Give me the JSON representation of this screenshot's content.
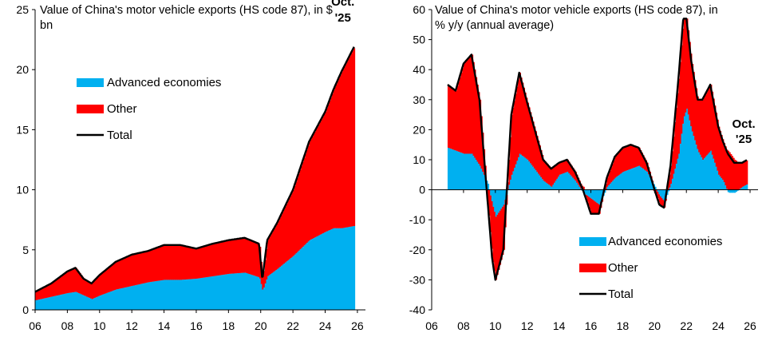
{
  "colors": {
    "advanced": "#00b0f0",
    "other": "#ff0000",
    "total": "#000000",
    "axis": "#000000"
  },
  "chart_data": [
    {
      "type": "area",
      "title_lines": [
        "Value of China's motor vehicle exports (HS code 87), in $",
        "bn"
      ],
      "xlabel": "",
      "ylabel": "",
      "xlim": [
        2006,
        2026.5
      ],
      "ylim": [
        0,
        25
      ],
      "x_ticks": [
        2006,
        2008,
        2010,
        2012,
        2014,
        2016,
        2018,
        2020,
        2022,
        2024,
        2026
      ],
      "x_tick_labels": [
        "06",
        "08",
        "10",
        "12",
        "14",
        "16",
        "18",
        "20",
        "22",
        "24",
        "26"
      ],
      "y_ticks": [
        0,
        5,
        10,
        15,
        20,
        25
      ],
      "y_tick_labels": [
        "0",
        "5",
        "10",
        "15",
        "20",
        "25"
      ],
      "legend": {
        "placement": "upper-left",
        "entries": [
          "Advanced economies",
          "Other",
          "Total"
        ]
      },
      "annotation": {
        "lines": [
          "Oct.",
          "'25"
        ],
        "x": 2025.1,
        "y": 22
      },
      "series": [
        {
          "name": "Advanced economies",
          "kind": "stacked-area",
          "x": [
            2006.0,
            2007.0,
            2008.0,
            2008.5,
            2009.0,
            2009.5,
            2010.0,
            2011.0,
            2012.0,
            2013.0,
            2014.0,
            2015.0,
            2016.0,
            2017.0,
            2018.0,
            2019.0,
            2019.9,
            2020.1,
            2020.4,
            2021.0,
            2022.0,
            2023.0,
            2024.0,
            2024.5,
            2025.0,
            2025.83
          ],
          "values": [
            0.8,
            1.1,
            1.4,
            1.5,
            1.2,
            0.9,
            1.2,
            1.7,
            2.0,
            2.3,
            2.5,
            2.5,
            2.6,
            2.8,
            3.0,
            3.1,
            2.7,
            1.6,
            2.8,
            3.4,
            4.5,
            5.8,
            6.5,
            6.8,
            6.8,
            7.0
          ]
        },
        {
          "name": "Other",
          "kind": "stacked-area",
          "x": [
            2006.0,
            2007.0,
            2008.0,
            2008.5,
            2009.0,
            2009.5,
            2010.0,
            2011.0,
            2012.0,
            2013.0,
            2014.0,
            2015.0,
            2016.0,
            2017.0,
            2018.0,
            2019.0,
            2019.9,
            2020.1,
            2020.4,
            2021.0,
            2022.0,
            2023.0,
            2024.0,
            2024.5,
            2025.0,
            2025.83
          ],
          "values": [
            0.7,
            1.1,
            1.8,
            2.0,
            1.4,
            1.3,
            1.7,
            2.3,
            2.6,
            2.6,
            2.9,
            2.9,
            2.5,
            2.7,
            2.8,
            2.9,
            2.8,
            0.9,
            3.0,
            3.8,
            5.5,
            8.2,
            10.0,
            11.5,
            13.0,
            15.0
          ]
        },
        {
          "name": "Total",
          "kind": "line",
          "x": [
            2006.0,
            2007.0,
            2008.0,
            2008.5,
            2009.0,
            2009.5,
            2010.0,
            2011.0,
            2012.0,
            2013.0,
            2014.0,
            2015.0,
            2016.0,
            2017.0,
            2018.0,
            2019.0,
            2019.9,
            2020.1,
            2020.4,
            2021.0,
            2022.0,
            2023.0,
            2024.0,
            2024.5,
            2025.0,
            2025.83
          ],
          "values": [
            1.5,
            2.2,
            3.2,
            3.5,
            2.6,
            2.2,
            2.9,
            4.0,
            4.6,
            4.9,
            5.4,
            5.4,
            5.1,
            5.5,
            5.8,
            6.0,
            5.5,
            2.5,
            5.8,
            7.2,
            10.0,
            14.0,
            16.5,
            18.3,
            19.8,
            22.0
          ]
        }
      ]
    },
    {
      "type": "area",
      "title_lines": [
        "Value of China's motor vehicle exports (HS code 87), in",
        "% y/y (annual average)"
      ],
      "xlabel": "",
      "ylabel": "",
      "xlim": [
        2006,
        2026.5
      ],
      "ylim": [
        -40,
        60
      ],
      "x_ticks": [
        2006,
        2008,
        2010,
        2012,
        2014,
        2016,
        2018,
        2020,
        2022,
        2024,
        2026
      ],
      "x_tick_labels": [
        "06",
        "08",
        "10",
        "12",
        "14",
        "16",
        "18",
        "20",
        "22",
        "24",
        "26"
      ],
      "y_ticks": [
        -40,
        -30,
        -20,
        -10,
        0,
        10,
        20,
        30,
        40,
        50,
        60
      ],
      "y_tick_labels": [
        "-40",
        "-30",
        "-20",
        "-10",
        "0",
        "10",
        "20",
        "30",
        "40",
        "50",
        "60"
      ],
      "legend": {
        "placement": "lower-center",
        "entries": [
          "Advanced economies",
          "Other",
          "Total"
        ]
      },
      "annotation": {
        "lines": [
          "Oct.",
          "'25"
        ],
        "x": 2025.6,
        "y": 10
      },
      "series": [
        {
          "name": "Advanced economies",
          "kind": "stacked-area",
          "x": [
            2007.0,
            2007.5,
            2008.0,
            2008.5,
            2009.0,
            2009.5,
            2009.8,
            2010.0,
            2010.5,
            2011.0,
            2011.5,
            2012.0,
            2013.0,
            2013.5,
            2014.0,
            2014.5,
            2015.0,
            2015.5,
            2016.0,
            2016.5,
            2017.0,
            2017.5,
            2018.0,
            2018.5,
            2019.0,
            2019.5,
            2020.0,
            2020.3,
            2020.6,
            2021.0,
            2021.5,
            2021.8,
            2022.0,
            2022.3,
            2022.7,
            2023.0,
            2023.5,
            2024.0,
            2024.3,
            2024.6,
            2025.0,
            2025.5,
            2025.83
          ],
          "values": [
            14,
            13,
            12,
            12,
            8,
            2,
            -5,
            -9,
            -5,
            5,
            12,
            10,
            3,
            1,
            5,
            6,
            3,
            -1,
            -3,
            -5,
            1,
            4,
            6,
            7,
            8,
            6,
            1,
            -2,
            -4,
            2,
            12,
            24,
            27,
            20,
            13,
            10,
            13,
            5,
            3,
            -1,
            -1,
            1,
            2
          ]
        },
        {
          "name": "Other",
          "kind": "stacked-area",
          "x": [
            2007.0,
            2007.5,
            2008.0,
            2008.5,
            2009.0,
            2009.5,
            2009.8,
            2010.0,
            2010.5,
            2011.0,
            2011.5,
            2012.0,
            2013.0,
            2013.5,
            2014.0,
            2014.5,
            2015.0,
            2015.5,
            2016.0,
            2016.5,
            2017.0,
            2017.5,
            2018.0,
            2018.5,
            2019.0,
            2019.5,
            2020.0,
            2020.3,
            2020.6,
            2021.0,
            2021.5,
            2021.8,
            2022.0,
            2022.3,
            2022.7,
            2023.0,
            2023.5,
            2024.0,
            2024.3,
            2024.6,
            2025.0,
            2025.5,
            2025.83
          ],
          "values": [
            21,
            20,
            30,
            33,
            22,
            -5,
            -18,
            -21,
            -15,
            20,
            27,
            19,
            7,
            6,
            4,
            4,
            3,
            1,
            -5,
            -3,
            3,
            7,
            8,
            8,
            6,
            3,
            -1,
            -3,
            -2,
            6,
            25,
            33,
            30,
            23,
            17,
            20,
            22,
            16,
            13,
            13,
            10,
            8,
            8
          ]
        },
        {
          "name": "Total",
          "kind": "line",
          "x": [
            2007.0,
            2007.5,
            2008.0,
            2008.5,
            2009.0,
            2009.5,
            2009.8,
            2010.0,
            2010.5,
            2011.0,
            2011.5,
            2012.0,
            2013.0,
            2013.5,
            2014.0,
            2014.5,
            2015.0,
            2015.5,
            2016.0,
            2016.5,
            2017.0,
            2017.5,
            2018.0,
            2018.5,
            2019.0,
            2019.5,
            2020.0,
            2020.3,
            2020.6,
            2021.0,
            2021.5,
            2021.8,
            2022.0,
            2022.3,
            2022.7,
            2023.0,
            2023.5,
            2024.0,
            2024.3,
            2024.6,
            2025.0,
            2025.5,
            2025.83
          ],
          "values": [
            35,
            33,
            42,
            45,
            30,
            -3,
            -23,
            -30,
            -20,
            25,
            39,
            29,
            10,
            7,
            9,
            10,
            6,
            0,
            -8,
            -8,
            4,
            11,
            14,
            15,
            14,
            9,
            0,
            -5,
            -6,
            8,
            37,
            57,
            57,
            43,
            30,
            30,
            35,
            21,
            16,
            12,
            9,
            9,
            10
          ]
        }
      ]
    }
  ]
}
